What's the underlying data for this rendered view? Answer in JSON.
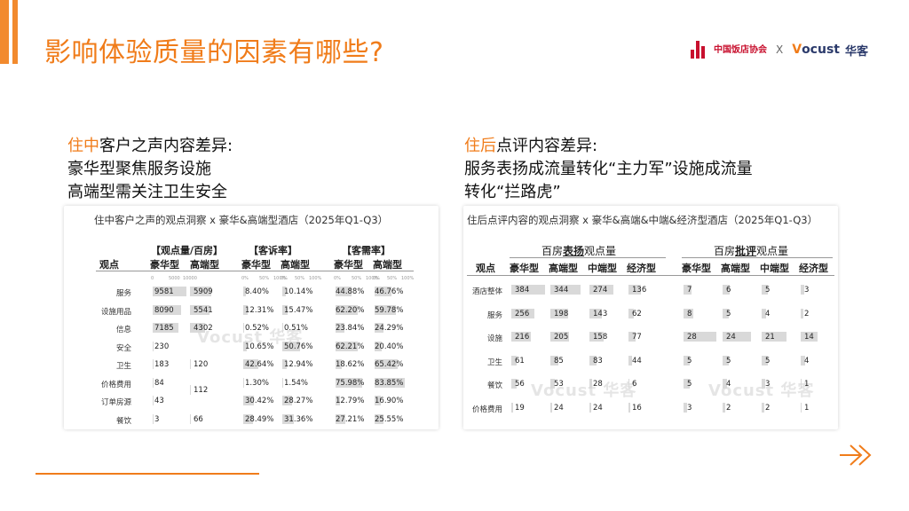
{
  "title": "影响体验质量的因素有哪些?",
  "logos": {
    "left_cn": "中国饭店协会",
    "x": "X",
    "brand_v": "V",
    "brand_rest": "ocust",
    "brand_cn": "华客"
  },
  "left_heading": {
    "hl": "住中",
    "line1_rest": "客户之声内容差异:",
    "line2": "豪华型聚焦服务设施",
    "line3": "高端型需关注卫生安全"
  },
  "right_heading": {
    "hl": "住后",
    "line1_rest": "点评内容差异:",
    "line2": "服务表扬成流量转化“主力军”设施成流量",
    "line3": "转化“拦路虎”"
  },
  "left_panel": {
    "title": "住中客户之声的观点洞察 x 豪华&高端型酒店（2025年Q1-Q3）",
    "group1": "【观点量/百房】",
    "group2": "【客诉率】",
    "group3": "【客需率】",
    "col_label": "观点",
    "col_lux": "豪华型",
    "col_high": "高端型",
    "watermark": "Vocust 华客",
    "axis1": [
      "0",
      "5000",
      "10000"
    ],
    "axis2": [
      "0%",
      "50%",
      "100%"
    ],
    "rows": [
      {
        "label": "服务",
        "v1": "9581",
        "v2": "5909",
        "c1": "8.40%",
        "c2": "10.14%",
        "d1": "44.88%",
        "d2": "46.76%"
      },
      {
        "label": "设施用品",
        "v1": "8090",
        "v2": "5541",
        "c1": "12.31%",
        "c2": "15.47%",
        "d1": "62.20%",
        "d2": "59.78%"
      },
      {
        "label": "信息",
        "v1": "7185",
        "v2": "4302",
        "c1": "0.52%",
        "c2": "0.51%",
        "d1": "23.84%",
        "d2": "24.29%"
      },
      {
        "label": "安全",
        "v1": "230",
        "v2": "",
        "c1": "10.65%",
        "c2": "50.76%",
        "d1": "62.21%",
        "d2": "20.40%"
      },
      {
        "label": "卫生",
        "v1": "183",
        "v2": "120",
        "c1": "42.64%",
        "c2": "12.94%",
        "d1": "18.62%",
        "d2": "65.42%"
      },
      {
        "label": "价格费用",
        "v1": "84",
        "v2": "112",
        "c1": "1.30%",
        "c2": "1.54%",
        "d1": "75.98%",
        "d2": "83.85%"
      },
      {
        "label": "订单房源",
        "v1": "43",
        "v2": "",
        "c1": "30.42%",
        "c2": "28.27%",
        "d1": "12.79%",
        "d2": "16.90%"
      },
      {
        "label": "餐饮",
        "v1": "3",
        "v2": "66",
        "c1": "28.49%",
        "c2": "31.36%",
        "d1": "27.21%",
        "d2": "25.55%"
      }
    ],
    "bar_values": {
      "v1": [
        9581,
        8090,
        7185,
        230,
        183,
        84,
        43,
        3
      ],
      "v2": [
        5909,
        5541,
        4302,
        0,
        120,
        112,
        0,
        66
      ],
      "c1": [
        8.4,
        12.31,
        0.52,
        10.65,
        42.64,
        1.3,
        30.42,
        28.49
      ],
      "c2": [
        10.14,
        15.47,
        0.51,
        50.76,
        12.94,
        1.54,
        28.27,
        31.36
      ],
      "d1": [
        44.88,
        62.2,
        23.84,
        62.21,
        18.62,
        75.98,
        12.79,
        27.21
      ],
      "d2": [
        46.76,
        59.78,
        24.29,
        20.4,
        65.42,
        83.85,
        16.9,
        25.55
      ]
    }
  },
  "right_panel": {
    "title": "住后点评内容的观点洞察 x 豪华&高端&中端&经济型酒店（2025年Q1-Q3）",
    "group1_pre": "百房",
    "group1_bold": "表扬",
    "group1_post": "观点量",
    "group2_pre": "百房",
    "group2_bold": "批评",
    "group2_post": "观点量",
    "col_label": "观点",
    "cols": [
      "豪华型",
      "高端型",
      "中端型",
      "经济型"
    ],
    "watermark": "Vocust 华客",
    "rows": [
      {
        "label": "酒店整体",
        "p": [
          "384",
          "344",
          "274",
          "136"
        ],
        "n": [
          "7",
          "6",
          "5",
          "3"
        ]
      },
      {
        "label": "服务",
        "p": [
          "256",
          "198",
          "143",
          "62"
        ],
        "n": [
          "8",
          "5",
          "4",
          "2"
        ]
      },
      {
        "label": "设施",
        "p": [
          "216",
          "205",
          "158",
          "77"
        ],
        "n": [
          "28",
          "24",
          "21",
          "14"
        ]
      },
      {
        "label": "卫生",
        "p": [
          "61",
          "85",
          "83",
          "44"
        ],
        "n": [
          "5",
          "5",
          "5",
          "4"
        ]
      },
      {
        "label": "餐饮",
        "p": [
          "56",
          "53",
          "28",
          "6"
        ],
        "n": [
          "5",
          "4",
          "3",
          "1"
        ]
      },
      {
        "label": "价格费用",
        "p": [
          "19",
          "24",
          "24",
          "16"
        ],
        "n": [
          "3",
          "2",
          "2",
          "1"
        ]
      }
    ],
    "bar_values": {
      "p": [
        [
          384,
          344,
          274,
          136
        ],
        [
          256,
          198,
          143,
          62
        ],
        [
          216,
          205,
          158,
          77
        ],
        [
          61,
          85,
          83,
          44
        ],
        [
          56,
          53,
          28,
          6
        ],
        [
          19,
          24,
          24,
          16
        ]
      ],
      "n": [
        [
          7,
          6,
          5,
          3
        ],
        [
          8,
          5,
          4,
          2
        ],
        [
          28,
          24,
          21,
          14
        ],
        [
          5,
          5,
          5,
          4
        ],
        [
          5,
          4,
          3,
          1
        ],
        [
          3,
          2,
          2,
          1
        ]
      ]
    }
  },
  "colors": {
    "accent": "#f07c1a",
    "bar": "#d9d9d9",
    "logo_red": "#c8102e"
  }
}
